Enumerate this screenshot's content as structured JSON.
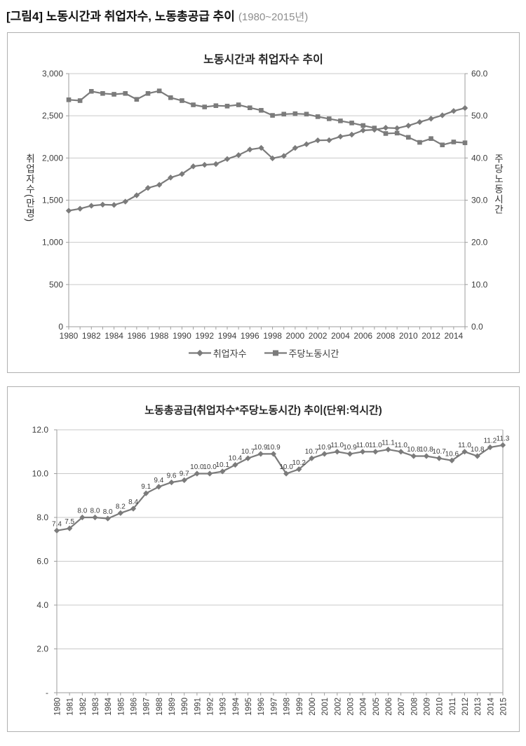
{
  "caption": {
    "title": "[그림4] 노동시간과 취업자수, 노동총공급 추이",
    "period": "(1980~2015년)"
  },
  "colors": {
    "series": "#7b7b7b",
    "grid": "#c9c9c9",
    "axis": "#9e9e9e",
    "tick_text": "#3d3d3d",
    "title_text": "#262626",
    "box_border": "#b0b0b0",
    "caption_period": "#8e8e8e"
  },
  "chart_data": [
    {
      "type": "line",
      "title": "노동시간과 취업자수 추이",
      "x_years": [
        1980,
        1981,
        1982,
        1983,
        1984,
        1985,
        1986,
        1987,
        1988,
        1989,
        1990,
        1991,
        1992,
        1993,
        1994,
        1995,
        1996,
        1997,
        1998,
        1999,
        2000,
        2001,
        2002,
        2003,
        2004,
        2005,
        2006,
        2007,
        2008,
        2009,
        2010,
        2011,
        2012,
        2013,
        2014,
        2015
      ],
      "x_tick_labels": [
        "1980",
        "1982",
        "1984",
        "1986",
        "1988",
        "1990",
        "1992",
        "1994",
        "1996",
        "1998",
        "2000",
        "2002",
        "2004",
        "2006",
        "2008",
        "2010",
        "2012",
        "2014"
      ],
      "left_axis": {
        "label": "취업자수(만명)",
        "range": [
          0,
          3000
        ],
        "ticks": [
          0,
          500,
          1000,
          1500,
          2000,
          2500,
          3000
        ],
        "tick_labels": [
          "0",
          "500",
          "1,000",
          "1,500",
          "2,000",
          "2,500",
          "3,000"
        ]
      },
      "right_axis": {
        "label": "주당노동시간",
        "range": [
          0,
          60
        ],
        "ticks": [
          0,
          10,
          20,
          30,
          40,
          50,
          60
        ],
        "tick_labels": [
          "0.0",
          "10.0",
          "20.0",
          "30.0",
          "40.0",
          "50.0",
          "60.0"
        ]
      },
      "series": [
        {
          "id": "employed",
          "name": "취업자수",
          "axis": "left",
          "marker": "diamond",
          "values": [
            1375,
            1399,
            1434,
            1447,
            1443,
            1483,
            1558,
            1645,
            1682,
            1768,
            1810,
            1901,
            1919,
            1928,
            1988,
            2034,
            2100,
            2120,
            1996,
            2024,
            2119,
            2163,
            2209,
            2211,
            2254,
            2277,
            2327,
            2335,
            2358,
            2353,
            2383,
            2426,
            2466,
            2506,
            2557,
            2592
          ]
        },
        {
          "id": "weekly-hours",
          "name": "주당노동시간",
          "axis": "right",
          "marker": "square",
          "values": [
            53.8,
            53.6,
            55.8,
            55.3,
            55.1,
            55.3,
            53.9,
            55.3,
            55.9,
            54.3,
            53.6,
            52.6,
            52.1,
            52.4,
            52.3,
            52.6,
            51.9,
            51.3,
            50.1,
            50.4,
            50.5,
            50.4,
            49.8,
            49.3,
            48.8,
            48.3,
            47.7,
            47.1,
            45.8,
            45.9,
            44.9,
            43.7,
            44.6,
            43.1,
            43.8,
            43.6
          ]
        }
      ],
      "legend": [
        "취업자수",
        "주당노동시간"
      ],
      "legend_position": "bottom",
      "grid": "horizontal"
    },
    {
      "type": "line",
      "title": "노동총공급(취업자수*주당노동시간) 추이(단위:억시간)",
      "x_years": [
        1980,
        1981,
        1982,
        1983,
        1984,
        1985,
        1986,
        1987,
        1988,
        1989,
        1990,
        1991,
        1992,
        1993,
        1994,
        1995,
        1996,
        1997,
        1998,
        1999,
        2000,
        2001,
        2002,
        2003,
        2004,
        2005,
        2006,
        2007,
        2008,
        2009,
        2010,
        2011,
        2012,
        2013,
        2014,
        2015
      ],
      "x_tick_labels": [
        "1980",
        "1981",
        "1982",
        "1983",
        "1984",
        "1985",
        "1986",
        "1987",
        "1988",
        "1989",
        "1990",
        "1991",
        "1992",
        "1993",
        "1994",
        "1995",
        "1996",
        "1997",
        "1998",
        "1999",
        "2000",
        "2001",
        "2002",
        "2003",
        "2004",
        "2005",
        "2006",
        "2007",
        "2008",
        "2009",
        "2010",
        "2011",
        "2012",
        "2013",
        "2014",
        "2015"
      ],
      "y_axis": {
        "label": "",
        "range": [
          0,
          12
        ],
        "ticks": [
          0,
          2,
          4,
          6,
          8,
          10,
          12
        ],
        "tick_labels": [
          "-",
          "2.0",
          "4.0",
          "6.0",
          "8.0",
          "10.0",
          "12.0"
        ]
      },
      "series": [
        {
          "id": "total-labor-supply",
          "name": "노동총공급",
          "axis": "left",
          "marker": "diamond",
          "values": [
            7.4,
            7.5,
            8.0,
            8.0,
            7.95,
            8.2,
            8.4,
            9.1,
            9.4,
            9.6,
            9.7,
            10.0,
            10.0,
            10.1,
            10.4,
            10.7,
            10.9,
            10.9,
            10.0,
            10.2,
            10.7,
            10.9,
            11.0,
            10.9,
            11.0,
            11.0,
            11.1,
            11.0,
            10.8,
            10.8,
            10.7,
            10.6,
            11.0,
            10.8,
            11.2,
            11.3
          ],
          "point_labels": [
            "7.4",
            "7.5",
            "8.0",
            "8.0",
            "8.0",
            "8.2",
            "8.4",
            "9.1",
            "9.4",
            "9.6",
            "9.7",
            "10.0",
            "10.0",
            "10.1",
            "10.4",
            "10.7",
            "10.9",
            "10.9",
            "10.0",
            "10.2",
            "10.7",
            "10.9",
            "11.0",
            "10.9",
            "11.0",
            "11.0",
            "11.1",
            "11.0",
            "10.8",
            "10.8",
            "10.7",
            "10.6",
            "11.0",
            "10.8",
            "11.2",
            "11.3"
          ]
        }
      ],
      "grid": "horizontal"
    }
  ]
}
